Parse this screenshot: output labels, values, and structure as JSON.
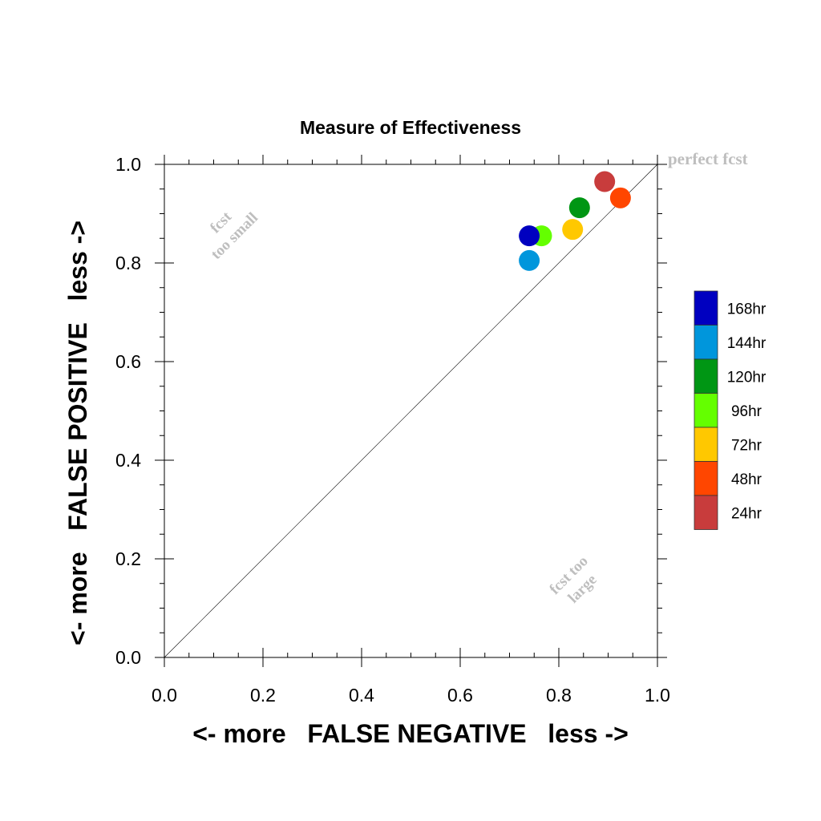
{
  "chart_data": {
    "type": "scatter",
    "title": "Measure of Effectiveness",
    "xlabel": "<- more   FALSE NEGATIVE   less ->",
    "ylabel": "<- more   FALSE POSITIVE   less ->",
    "xlim": [
      0.0,
      1.0
    ],
    "ylim": [
      0.0,
      1.0
    ],
    "x_tick_labels": [
      "0.0",
      "0.2",
      "0.4",
      "0.6",
      "0.8",
      "1.0"
    ],
    "y_tick_labels": [
      "0.0",
      "0.2",
      "0.4",
      "0.6",
      "0.8",
      "1.0"
    ],
    "grid": false,
    "diagonal_reference_line": true,
    "annotations": {
      "perfect": "perfect fcst",
      "too_small_line1": "fcst",
      "too_small_line2": "too small",
      "too_large_line1": "fcst too",
      "too_large_line2": "large"
    },
    "legend_placement": "right",
    "series": [
      {
        "name": "168hr",
        "color": "#0000c0",
        "x": 0.74,
        "y": 0.855
      },
      {
        "name": "144hr",
        "color": "#0096dc",
        "x": 0.74,
        "y": 0.805
      },
      {
        "name": "120hr",
        "color": "#009614",
        "x": 0.842,
        "y": 0.912
      },
      {
        "name": "96hr",
        "color": "#64ff00",
        "x": 0.765,
        "y": 0.855
      },
      {
        "name": "72hr",
        "color": "#ffc800",
        "x": 0.828,
        "y": 0.868
      },
      {
        "name": "48hr",
        "color": "#ff4600",
        "x": 0.925,
        "y": 0.932
      },
      {
        "name": "24hr",
        "color": "#c83c3c",
        "x": 0.893,
        "y": 0.965
      }
    ]
  }
}
